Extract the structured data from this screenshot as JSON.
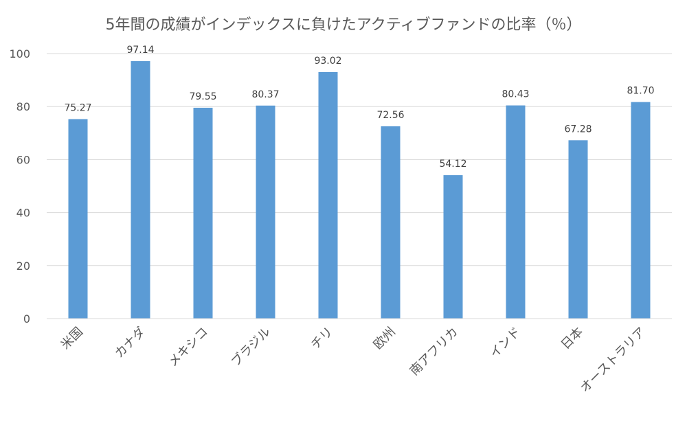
{
  "chart_data": {
    "type": "bar",
    "title": "5年間の成績がインデックスに負けたアクティブファンドの比率（％）",
    "categories": [
      "米国",
      "カナダ",
      "メキシコ",
      "ブラジル",
      "チリ",
      "欧州",
      "南アフリカ",
      "インド",
      "日本",
      "オーストラリア"
    ],
    "series": [
      {
        "values": [
          75.27,
          97.14,
          79.55,
          80.37,
          93.02,
          72.56,
          54.12,
          80.43,
          67.28,
          81.7
        ]
      }
    ],
    "data_labels": [
      "75.27",
      "97.14",
      "79.55",
      "80.37",
      "93.02",
      "72.56",
      "54.12",
      "80.43",
      "67.28",
      "81.70"
    ],
    "ylim": [
      0,
      100
    ],
    "yticks": [
      0,
      20,
      40,
      60,
      80,
      100
    ],
    "grid": true,
    "legend": "none",
    "colors": {
      "bar": "#5b9bd5",
      "grid": "#d9d9d9",
      "text": "#595959"
    }
  }
}
